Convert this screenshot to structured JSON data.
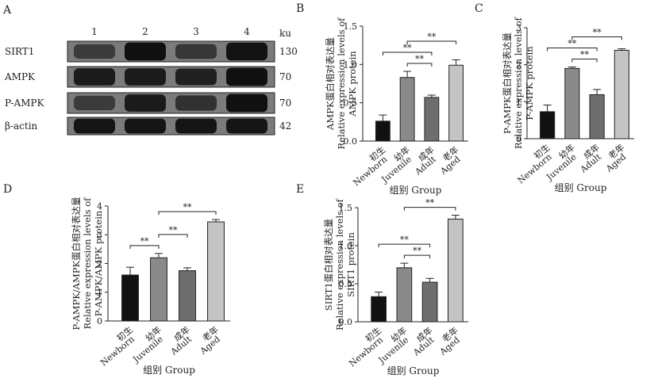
{
  "western_blot": {
    "panel_label": "A",
    "lanes": [
      "1",
      "2",
      "3",
      "4"
    ],
    "unit_header": "ku",
    "rows": [
      {
        "protein": "SIRT1",
        "size": "130",
        "intensities": [
          0.55,
          0.95,
          0.6,
          0.92
        ]
      },
      {
        "protein": "AMPK",
        "size": "70",
        "intensities": [
          0.85,
          0.85,
          0.8,
          0.95
        ]
      },
      {
        "protein": "P-AMPK",
        "size": "70",
        "intensities": [
          0.55,
          0.85,
          0.65,
          0.95
        ]
      },
      {
        "protein": "β-actin",
        "size": "42",
        "intensities": [
          0.9,
          0.9,
          0.9,
          0.9
        ]
      }
    ]
  },
  "categories_zh": [
    "初生",
    "幼年",
    "成年",
    "老年"
  ],
  "categories_en": [
    "Newborn",
    "Juvenile",
    "Adult",
    "Aged"
  ],
  "bar_colors": [
    "#111111",
    "#8a8a8a",
    "#6e6e6e",
    "#c4c4c4"
  ],
  "sig_label": "**",
  "chart_data": [
    {
      "panel": "B",
      "type": "bar",
      "ylabel_lines": [
        "AMPK蛋白相对表达量",
        "Relative expression levels of",
        "AMPK protein"
      ],
      "xlabel": "组别 Group",
      "ylim": [
        0,
        1.5
      ],
      "yticks": [
        "0.0",
        "0.5",
        "1.0",
        "1.5"
      ],
      "values": [
        0.26,
        0.83,
        0.57,
        0.99
      ],
      "errors": [
        0.08,
        0.08,
        0.03,
        0.07
      ],
      "sig_brackets": [
        [
          1,
          2
        ],
        [
          0,
          2
        ],
        [
          1,
          3
        ]
      ]
    },
    {
      "panel": "C",
      "type": "bar",
      "ylabel_lines": [
        "P-AMPK蛋白相对表达量",
        "Relative expression levels of",
        "P-AMPK protein"
      ],
      "xlabel": "组别 Group",
      "ylim": [
        0,
        3
      ],
      "yticks": [
        "0",
        "1",
        "2",
        "3"
      ],
      "values": [
        0.73,
        1.9,
        1.19,
        2.39
      ],
      "errors": [
        0.18,
        0.04,
        0.14,
        0.04
      ],
      "sig_brackets": [
        [
          1,
          2
        ],
        [
          0,
          2
        ],
        [
          1,
          3
        ]
      ]
    },
    {
      "panel": "D",
      "type": "bar",
      "ylabel_lines": [
        "P-AMPK/AMPK蛋白相对表达量",
        "Relative expression levels of",
        "P-AMPK/AMPK protein"
      ],
      "xlabel": "组别 Group",
      "ylim": [
        0,
        4
      ],
      "yticks": [
        "0",
        "1",
        "2",
        "3",
        "4"
      ],
      "values": [
        1.6,
        2.2,
        1.75,
        3.45
      ],
      "errors": [
        0.27,
        0.15,
        0.1,
        0.08
      ],
      "sig_brackets": [
        [
          0,
          1
        ],
        [
          1,
          2
        ],
        [
          1,
          3
        ]
      ]
    },
    {
      "panel": "E",
      "type": "bar",
      "ylabel_lines": [
        "SIRT1蛋白相对表达量",
        "Relative expression levels of",
        "SIRT1 protein"
      ],
      "xlabel": "组别 Group",
      "ylim": [
        0,
        1.5
      ],
      "yticks": [
        "0.0",
        "0.5",
        "1.0",
        "1.5"
      ],
      "values": [
        0.33,
        0.71,
        0.52,
        1.35
      ],
      "errors": [
        0.06,
        0.06,
        0.05,
        0.05
      ],
      "sig_brackets": [
        [
          1,
          2
        ],
        [
          0,
          2
        ],
        [
          1,
          3
        ]
      ]
    }
  ]
}
